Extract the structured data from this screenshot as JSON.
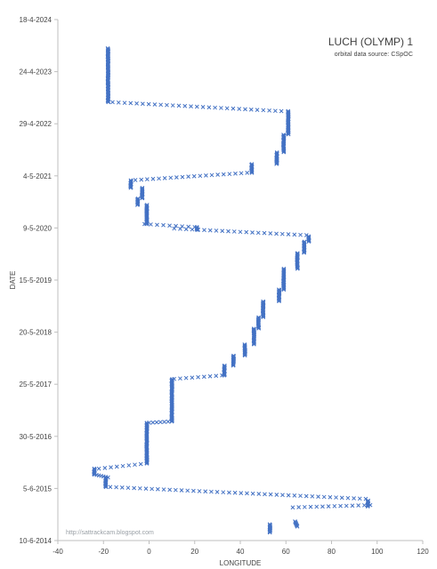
{
  "chart_data": {
    "type": "scatter",
    "title": "LUCH (OLYMP) 1",
    "subtitle": "orbital data source:  CSpOC",
    "watermark": "http://sattrackcam.blogspot.com",
    "xlabel": "LONGITUDE",
    "ylabel": "DATE",
    "xlim": [
      -40,
      120
    ],
    "xticks": [
      "-40",
      "-20",
      "0",
      "20",
      "40",
      "60",
      "80",
      "100",
      "120"
    ],
    "yticks": [
      "10-6-2014",
      "5-6-2015",
      "30-5-2016",
      "25-5-2017",
      "20-5-2018",
      "15-5-2019",
      "9-5-2020",
      "4-5-2021",
      "29-4-2022",
      "24-4-2023",
      "18-4-2024"
    ],
    "ylim": [
      "10-6-2014",
      "18-4-2024"
    ],
    "grid": false,
    "marker": "x",
    "color": "#4472c4",
    "segments": [
      {
        "type": "drift",
        "t0": "2014-09-15",
        "t1": "2014-10-20",
        "lon0": 65,
        "lon1": 64
      },
      {
        "type": "stable",
        "t0": "2014-08-05",
        "t1": "2014-09-30",
        "lon": 53
      },
      {
        "type": "drift",
        "t0": "2015-01-25",
        "t1": "2015-02-10",
        "lon0": 63,
        "lon1": 97
      },
      {
        "type": "stable",
        "t0": "2015-02-01",
        "t1": "2015-03-15",
        "lon": 96
      },
      {
        "type": "drift",
        "t0": "2015-03-25",
        "t1": "2015-06-15",
        "lon0": 95,
        "lon1": -17
      },
      {
        "type": "stable",
        "t0": "2015-06-15",
        "t1": "2015-08-20",
        "lon": -19
      },
      {
        "type": "drift",
        "t0": "2015-08-20",
        "t1": "2015-09-10",
        "lon0": -18,
        "lon1": -24
      },
      {
        "type": "stable",
        "t0": "2015-09-10",
        "t1": "2015-10-20",
        "lon": -24
      },
      {
        "type": "drift",
        "t0": "2015-10-20",
        "t1": "2015-11-25",
        "lon0": -22,
        "lon1": -1
      },
      {
        "type": "stable",
        "t0": "2015-11-25",
        "t1": "2016-09-01",
        "lon": -1
      },
      {
        "type": "drift",
        "t0": "2016-09-01",
        "t1": "2016-09-10",
        "lon0": 0,
        "lon1": 10
      },
      {
        "type": "stable",
        "t0": "2016-09-10",
        "t1": "2017-07-01",
        "lon": 10
      },
      {
        "type": "drift",
        "t0": "2017-07-01",
        "t1": "2017-07-25",
        "lon0": 11,
        "lon1": 32
      },
      {
        "type": "stable",
        "t0": "2017-07-25",
        "t1": "2017-10-01",
        "lon": 33
      },
      {
        "type": "stable",
        "t0": "2017-10-01",
        "t1": "2017-12-10",
        "lon": 37
      },
      {
        "type": "stable",
        "t0": "2017-12-10",
        "t1": "2018-02-25",
        "lon": 42
      },
      {
        "type": "stable",
        "t0": "2018-02-25",
        "t1": "2018-06-15",
        "lon": 46
      },
      {
        "type": "stable",
        "t0": "2018-06-15",
        "t1": "2018-09-01",
        "lon": 48
      },
      {
        "type": "stable",
        "t0": "2018-09-01",
        "t1": "2018-12-20",
        "lon": 50
      },
      {
        "type": "stable",
        "t0": "2018-12-20",
        "t1": "2019-03-10",
        "lon": 57
      },
      {
        "type": "stable",
        "t0": "2019-03-10",
        "t1": "2019-08-01",
        "lon": 59
      },
      {
        "type": "stable",
        "t0": "2019-08-01",
        "t1": "2019-11-20",
        "lon": 65
      },
      {
        "type": "stable",
        "t0": "2019-11-20",
        "t1": "2020-02-05",
        "lon": 68
      },
      {
        "type": "stable",
        "t0": "2020-02-05",
        "t1": "2020-03-15",
        "lon": 70
      },
      {
        "type": "drift",
        "t0": "2020-03-20",
        "t1": "2020-05-05",
        "lon0": 69,
        "lon1": 11
      },
      {
        "type": "stable",
        "t0": "2020-04-25",
        "t1": "2020-05-15",
        "lon": 21
      },
      {
        "type": "drift",
        "t0": "2020-05-15",
        "t1": "2020-06-05",
        "lon0": 20,
        "lon1": -2
      },
      {
        "type": "stable",
        "t0": "2020-06-05",
        "t1": "2020-10-15",
        "lon": -1
      },
      {
        "type": "stable",
        "t0": "2020-10-15",
        "t1": "2020-11-30",
        "lon": -5
      },
      {
        "type": "stable",
        "t0": "2020-11-30",
        "t1": "2021-02-10",
        "lon": -3
      },
      {
        "type": "stable",
        "t0": "2021-02-10",
        "t1": "2021-04-05",
        "lon": -8
      },
      {
        "type": "drift",
        "t0": "2021-04-05",
        "t1": "2021-05-25",
        "lon0": -6,
        "lon1": 43
      },
      {
        "type": "stable",
        "t0": "2021-05-25",
        "t1": "2021-07-25",
        "lon": 45
      },
      {
        "type": "stable",
        "t0": "2021-07-25",
        "t1": "2021-10-15",
        "lon": 56
      },
      {
        "type": "stable",
        "t0": "2021-10-15",
        "t1": "2022-02-15",
        "lon": 59
      },
      {
        "type": "stable",
        "t0": "2022-02-15",
        "t1": "2022-07-25",
        "lon": 61
      },
      {
        "type": "drift",
        "t0": "2022-07-25",
        "t1": "2022-09-25",
        "lon0": 58,
        "lon1": -16
      },
      {
        "type": "stable",
        "t0": "2022-09-25",
        "t1": "2023-10-05",
        "lon": -18
      }
    ]
  }
}
